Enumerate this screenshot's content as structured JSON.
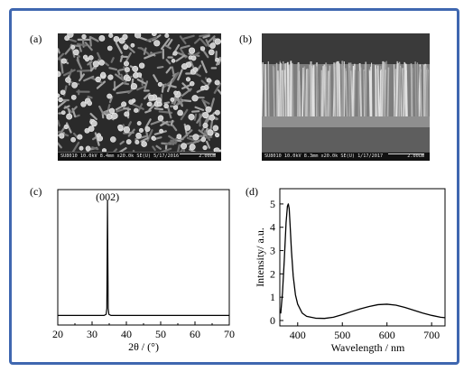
{
  "figure": {
    "border_color": "#3f67b0",
    "panels": {
      "a": {
        "label": "(a)",
        "sem_meta": "SU8010 10.0kV 8.4mm x20.0k SE(U) 5/17/2016",
        "sem_scale": "2.00um"
      },
      "b": {
        "label": "(b)",
        "sem_meta": "SU8010 10.0kV 8.3mm x20.0k SE(U) 1/17/2017",
        "sem_scale": "2.00um"
      },
      "c": {
        "label": "(c)"
      },
      "d": {
        "label": "(d)"
      }
    }
  },
  "chart_data": [
    {
      "type": "line",
      "panel": "c",
      "title": "",
      "xlabel": "2θ / (°)",
      "ylabel": "",
      "xlim": [
        20,
        70
      ],
      "x_ticks": [
        20,
        30,
        40,
        50,
        60,
        70
      ],
      "annotations": [
        {
          "text": "(002)",
          "x": 34.5
        }
      ],
      "series": [
        {
          "x": [
            20,
            33.5,
            34.1,
            34.3,
            34.42,
            34.5,
            34.58,
            34.7,
            34.9,
            35.5,
            70
          ],
          "values": [
            0.02,
            0.02,
            0.03,
            0.08,
            0.6,
            1.0,
            0.6,
            0.08,
            0.03,
            0.02,
            0.02
          ]
        }
      ]
    },
    {
      "type": "line",
      "panel": "d",
      "title": "",
      "xlabel": "Wavelength / nm",
      "ylabel": "Intensity/ a.u.",
      "xlim": [
        360,
        730
      ],
      "ylim": [
        0,
        5.5
      ],
      "x_ticks": [
        400,
        500,
        600,
        700
      ],
      "y_ticks": [
        0,
        1,
        2,
        3,
        4,
        5
      ],
      "series": [
        {
          "x": [
            362,
            366,
            370,
            374,
            377,
            379,
            381,
            383,
            386,
            390,
            395,
            400,
            410,
            420,
            440,
            460,
            480,
            500,
            520,
            540,
            560,
            580,
            600,
            620,
            640,
            660,
            680,
            700,
            720,
            730
          ],
          "values": [
            0.3,
            1.2,
            2.6,
            4.2,
            4.9,
            5.0,
            4.8,
            4.1,
            3.0,
            1.9,
            1.1,
            0.7,
            0.32,
            0.18,
            0.1,
            0.09,
            0.14,
            0.25,
            0.38,
            0.5,
            0.6,
            0.68,
            0.7,
            0.66,
            0.56,
            0.44,
            0.32,
            0.22,
            0.14,
            0.12
          ]
        }
      ]
    }
  ]
}
